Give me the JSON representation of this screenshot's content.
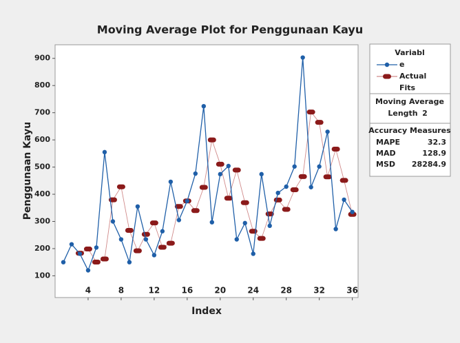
{
  "chart_data": {
    "type": "line",
    "title": "Moving Average Plot for Penggunaan Kayu",
    "x_label": "Index",
    "y_label": "Penggunaan Kayu",
    "xlim": [
      0,
      36.7
    ],
    "xticks": [
      4,
      8,
      12,
      16,
      20,
      24,
      28,
      32,
      36
    ],
    "ylim": [
      20,
      950
    ],
    "yticks": [
      100,
      200,
      300,
      400,
      500,
      600,
      700,
      800,
      900
    ],
    "legend_title": "Variable",
    "series": [
      {
        "name": "Actual",
        "color": "#1f5fa8",
        "x": [
          1,
          2,
          3,
          4,
          5,
          6,
          7,
          8,
          9,
          10,
          11,
          12,
          13,
          14,
          15,
          16,
          17,
          18,
          19,
          20,
          21,
          22,
          23,
          24,
          25,
          26,
          27,
          28,
          29,
          30,
          31,
          32,
          33,
          34,
          35,
          36
        ],
        "values": [
          150,
          216,
          181,
          120,
          204,
          555,
          300,
          234,
          150,
          355,
          234,
          176,
          264,
          446,
          305,
          375,
          476,
          724,
          297,
          474,
          504,
          234,
          294,
          181,
          474,
          284,
          405,
          428,
          502,
          903,
          426,
          502,
          630,
          272,
          380,
          335
        ]
      },
      {
        "name": "Fits",
        "color": "#8b1a1a",
        "x": [
          3,
          4,
          5,
          6,
          7,
          8,
          9,
          10,
          11,
          12,
          13,
          14,
          15,
          16,
          17,
          18,
          19,
          20,
          21,
          22,
          23,
          24,
          25,
          26,
          27,
          28,
          29,
          30,
          31,
          32,
          33,
          34,
          35,
          36
        ],
        "values": [
          183,
          198.5,
          150.5,
          162,
          379.5,
          427.5,
          267,
          192,
          252.5,
          294.5,
          205,
          220,
          355,
          375.5,
          340,
          425.5,
          600,
          510.5,
          385.5,
          489,
          369,
          264,
          237.5,
          327.5,
          379,
          344.5,
          416.5,
          465,
          702.5,
          664.5,
          464,
          566,
          451,
          326
        ]
      }
    ],
    "moving_average": {
      "title": "Moving Average",
      "length_label": "Length",
      "length": 2
    },
    "accuracy": {
      "title": "Accuracy Measures",
      "measures": [
        {
          "name": "MAPE",
          "value": "32.3"
        },
        {
          "name": "MAD",
          "value": "128.9"
        },
        {
          "name": "MSD",
          "value": "28284.9"
        }
      ]
    }
  }
}
